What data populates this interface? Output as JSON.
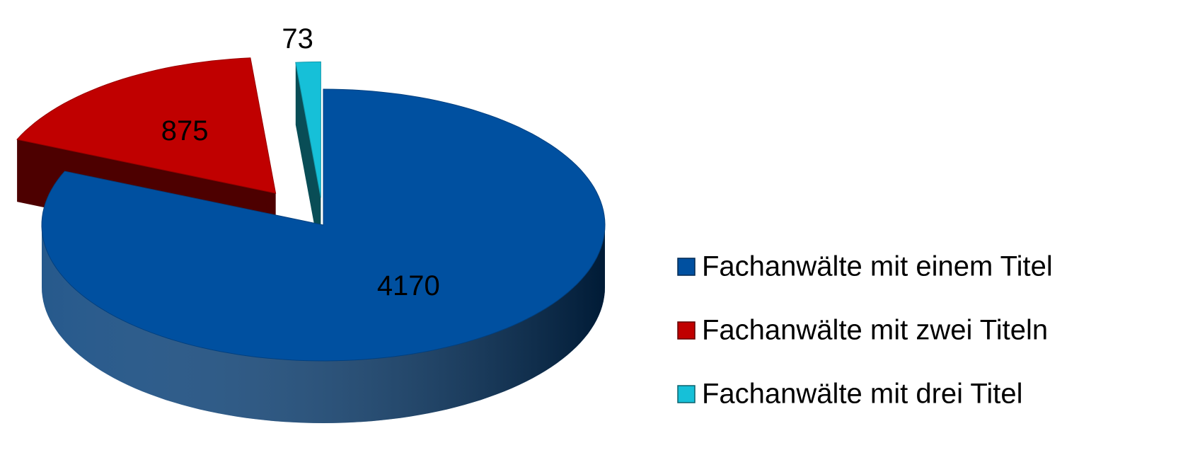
{
  "chart_data": {
    "type": "pie",
    "categories": [
      "Fachanwälte mit einem Titel",
      "Fachanwälte mit zwei Titeln",
      "Fachanwälte mit drei Titel"
    ],
    "values": [
      4170,
      875,
      73
    ],
    "colors": [
      "#0050a0",
      "#c00000",
      "#16c0d8"
    ]
  }
}
